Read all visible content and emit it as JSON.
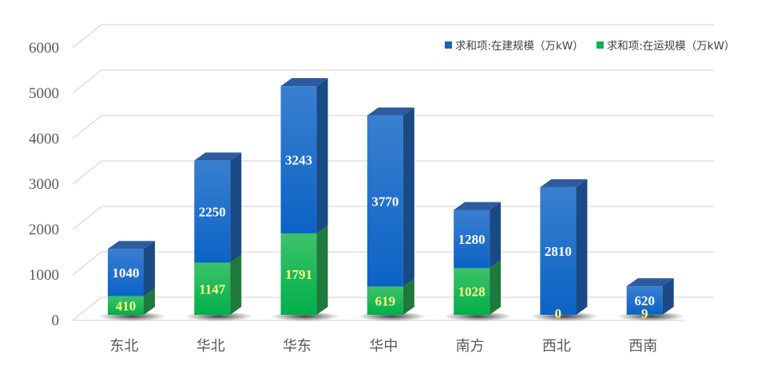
{
  "chart_data": {
    "type": "bar",
    "stacked": true,
    "style": "3d-column",
    "title": "",
    "xlabel": "",
    "ylabel": "",
    "ylim": [
      0,
      6000
    ],
    "yticks": [
      0,
      1000,
      2000,
      3000,
      4000,
      5000,
      6000
    ],
    "grid": true,
    "legend_position": "top-right",
    "categories": [
      "东北",
      "华北",
      "华东",
      "华中",
      "南方",
      "西北",
      "西南"
    ],
    "series": [
      {
        "name": "求和项:在运规模（万kW）",
        "color": "#12b04a",
        "side_color": "#1e7a3c",
        "top_color": "#3cc46a",
        "label_color": "#ffff80",
        "values": [
          410,
          1147,
          1791,
          619,
          1028,
          0,
          9
        ]
      },
      {
        "name": "求和项:在建规模（万kW）",
        "color": "#1f6fcf",
        "side_color": "#1a4a85",
        "top_color": "#2d5c9e",
        "label_color": "#ffffff",
        "values": [
          1040,
          2250,
          3243,
          3770,
          1280,
          2810,
          620
        ]
      }
    ]
  },
  "legend": {
    "items": [
      {
        "label": "求和项:在建规模（万kW）",
        "color": "#1565c0"
      },
      {
        "label": "求和项:在运规模（万kW）",
        "color": "#12b04a"
      }
    ]
  }
}
